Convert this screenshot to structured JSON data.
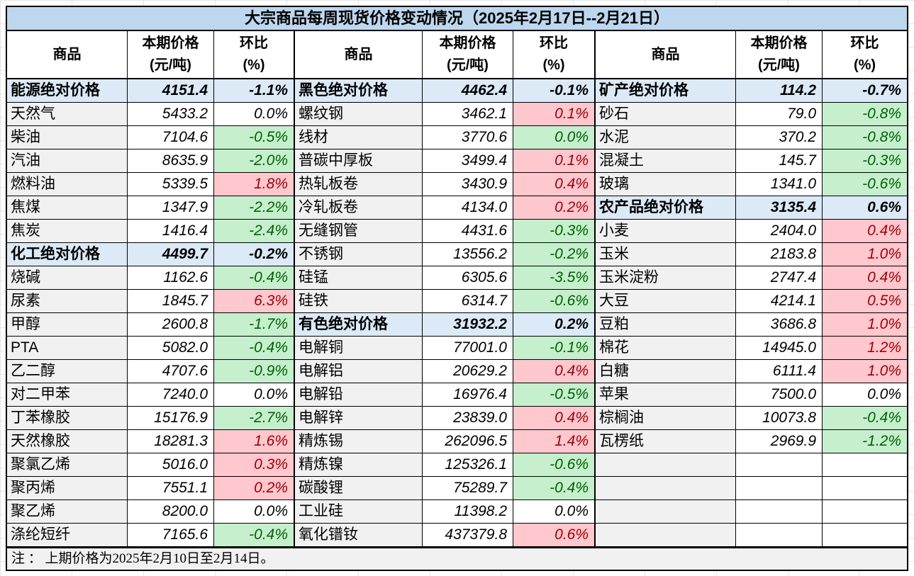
{
  "title": "大宗商品每周现货价格变动情况（2025年2月17日--2月21日）",
  "note": "注 ： 上期价格为2025年2月10日至2月14日。",
  "columns": {
    "commodity": "商品",
    "price": "本期价格\n(元/吨)",
    "pct": "环比\n(%)"
  },
  "row_count": 20,
  "colors": {
    "title_bg": "#BDD7EE",
    "section_bg": "#DCEAF7",
    "name_bg": "#F1F1F1",
    "up_bg": "#FFC7CE",
    "up_text": "#9C0006",
    "down_bg": "#C6EFCE",
    "down_text": "#006100",
    "border": "#000000"
  },
  "groups": [
    {
      "rows": [
        {
          "name": "能源绝对价格",
          "price": "4151.4",
          "pct": "-1.1%",
          "style": "section"
        },
        {
          "name": "天然气",
          "price": "5433.2",
          "pct": "0.0%",
          "style": "flat"
        },
        {
          "name": "柴油",
          "price": "7104.6",
          "pct": "-0.5%",
          "style": "down"
        },
        {
          "name": "汽油",
          "price": "8635.9",
          "pct": "-2.0%",
          "style": "down"
        },
        {
          "name": "燃料油",
          "price": "5339.5",
          "pct": "1.8%",
          "style": "up"
        },
        {
          "name": "焦煤",
          "price": "1347.9",
          "pct": "-2.2%",
          "style": "down"
        },
        {
          "name": "焦炭",
          "price": "1416.4",
          "pct": "-2.4%",
          "style": "down"
        },
        {
          "name": "化工绝对价格",
          "price": "4499.7",
          "pct": "-0.2%",
          "style": "section"
        },
        {
          "name": "烧碱",
          "price": "1162.6",
          "pct": "-0.4%",
          "style": "down"
        },
        {
          "name": "尿素",
          "price": "1845.7",
          "pct": "6.3%",
          "style": "up"
        },
        {
          "name": "甲醇",
          "price": "2600.8",
          "pct": "-1.7%",
          "style": "down"
        },
        {
          "name": "PTA",
          "price": "5082.0",
          "pct": "-0.4%",
          "style": "down"
        },
        {
          "name": "乙二醇",
          "price": "4707.6",
          "pct": "-0.9%",
          "style": "down"
        },
        {
          "name": "对二甲苯",
          "price": "7240.0",
          "pct": "0.0%",
          "style": "flat"
        },
        {
          "name": "丁苯橡胶",
          "price": "15176.9",
          "pct": "-2.7%",
          "style": "down"
        },
        {
          "name": "天然橡胶",
          "price": "18281.3",
          "pct": "1.6%",
          "style": "up"
        },
        {
          "name": "聚氯乙烯",
          "price": "5016.0",
          "pct": "0.3%",
          "style": "up"
        },
        {
          "name": "聚丙烯",
          "price": "7551.1",
          "pct": "0.2%",
          "style": "up"
        },
        {
          "name": "聚乙烯",
          "price": "8200.0",
          "pct": "0.0%",
          "style": "flat"
        },
        {
          "name": "涤纶短纤",
          "price": "7165.6",
          "pct": "-0.4%",
          "style": "down"
        }
      ]
    },
    {
      "rows": [
        {
          "name": "黑色绝对价格",
          "price": "4462.4",
          "pct": "-0.1%",
          "style": "section"
        },
        {
          "name": "螺纹钢",
          "price": "3462.1",
          "pct": "0.1%",
          "style": "up"
        },
        {
          "name": "线材",
          "price": "3770.6",
          "pct": "0.0%",
          "style": "down"
        },
        {
          "name": "普碳中厚板",
          "price": "3499.4",
          "pct": "0.1%",
          "style": "up"
        },
        {
          "name": "热轧板卷",
          "price": "3430.9",
          "pct": "0.4%",
          "style": "up"
        },
        {
          "name": "冷轧板卷",
          "price": "4134.0",
          "pct": "0.2%",
          "style": "up"
        },
        {
          "name": "无缝钢管",
          "price": "4431.6",
          "pct": "-0.3%",
          "style": "down"
        },
        {
          "name": "不锈钢",
          "price": "13556.2",
          "pct": "-0.2%",
          "style": "down"
        },
        {
          "name": "硅锰",
          "price": "6305.6",
          "pct": "-3.5%",
          "style": "down"
        },
        {
          "name": "硅铁",
          "price": "6314.7",
          "pct": "-0.6%",
          "style": "down"
        },
        {
          "name": "有色绝对价格",
          "price": "31932.2",
          "pct": "0.2%",
          "style": "section"
        },
        {
          "name": "电解铜",
          "price": "77001.0",
          "pct": "-0.1%",
          "style": "down"
        },
        {
          "name": "电解铝",
          "price": "20629.2",
          "pct": "0.4%",
          "style": "up"
        },
        {
          "name": "电解铅",
          "price": "16976.4",
          "pct": "-0.5%",
          "style": "down"
        },
        {
          "name": "电解锌",
          "price": "23839.0",
          "pct": "0.4%",
          "style": "up"
        },
        {
          "name": "精炼锡",
          "price": "262096.5",
          "pct": "1.4%",
          "style": "up"
        },
        {
          "name": "精炼镍",
          "price": "125326.1",
          "pct": "-0.6%",
          "style": "down"
        },
        {
          "name": "碳酸锂",
          "price": "75289.7",
          "pct": "-0.4%",
          "style": "down"
        },
        {
          "name": "工业硅",
          "price": "11398.2",
          "pct": "0.0%",
          "style": "flat"
        },
        {
          "name": "氧化镨钕",
          "price": "437379.8",
          "pct": "0.6%",
          "style": "up"
        }
      ]
    },
    {
      "rows": [
        {
          "name": "矿产绝对价格",
          "price": "114.2",
          "pct": "-0.7%",
          "style": "section"
        },
        {
          "name": "砂石",
          "price": "79.0",
          "pct": "-0.8%",
          "style": "down"
        },
        {
          "name": "水泥",
          "price": "370.2",
          "pct": "-0.8%",
          "style": "down"
        },
        {
          "name": "混凝土",
          "price": "145.7",
          "pct": "-0.3%",
          "style": "down"
        },
        {
          "name": "玻璃",
          "price": "1341.0",
          "pct": "-0.6%",
          "style": "down"
        },
        {
          "name": "农产品绝对价格",
          "price": "3135.4",
          "pct": "0.6%",
          "style": "section"
        },
        {
          "name": "小麦",
          "price": "2404.0",
          "pct": "0.4%",
          "style": "up"
        },
        {
          "name": "玉米",
          "price": "2183.8",
          "pct": "1.0%",
          "style": "up"
        },
        {
          "name": "玉米淀粉",
          "price": "2747.4",
          "pct": "0.4%",
          "style": "up"
        },
        {
          "name": "大豆",
          "price": "4214.1",
          "pct": "0.5%",
          "style": "up"
        },
        {
          "name": "豆粕",
          "price": "3686.8",
          "pct": "1.0%",
          "style": "up"
        },
        {
          "name": "棉花",
          "price": "14945.0",
          "pct": "1.2%",
          "style": "up"
        },
        {
          "name": "白糖",
          "price": "6111.4",
          "pct": "1.0%",
          "style": "up"
        },
        {
          "name": "苹果",
          "price": "7500.0",
          "pct": "0.0%",
          "style": "flat"
        },
        {
          "name": "棕榈油",
          "price": "10073.8",
          "pct": "-0.4%",
          "style": "down"
        },
        {
          "name": "瓦楞纸",
          "price": "2969.9",
          "pct": "-1.2%",
          "style": "down"
        },
        {
          "style": "empty"
        },
        {
          "style": "empty"
        },
        {
          "style": "empty"
        },
        {
          "style": "empty"
        }
      ]
    }
  ]
}
